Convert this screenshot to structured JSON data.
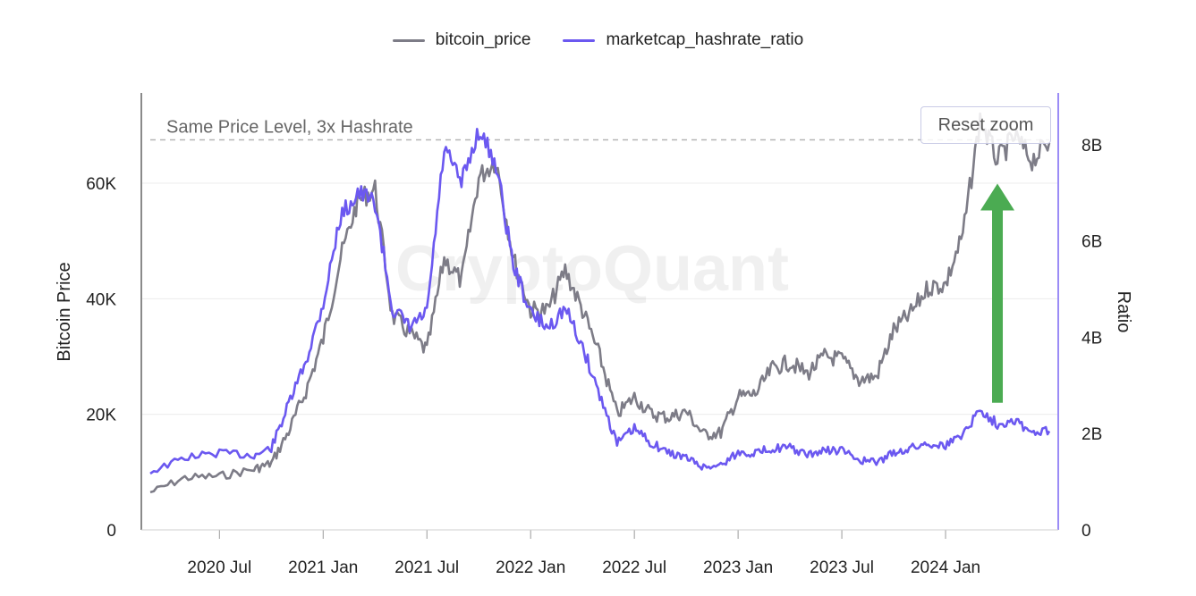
{
  "legend": {
    "price_label": "bitcoin_price",
    "ratio_label": "marketcap_hashrate_ratio"
  },
  "reset_zoom_label": "Reset zoom",
  "watermark": "CryptoQuant",
  "colors": {
    "price": "#7d7c87",
    "ratio": "#6b58f0",
    "arrow": "#4bab52",
    "ref_line": "#b5b5b5",
    "right_axis": "#9b8cf6"
  },
  "chart_data": {
    "type": "line",
    "x_range": [
      "2020-03",
      "2024-07"
    ],
    "y_left": {
      "label": "Bitcoin Price",
      "range": [
        0,
        75000
      ],
      "ticks": [
        0,
        20000,
        40000,
        60000
      ],
      "tick_labels": [
        "0",
        "20K",
        "40K",
        "60K"
      ]
    },
    "y_right": {
      "label": "Ratio",
      "range": [
        0,
        9000000000
      ],
      "ticks": [
        0,
        2000000000,
        4000000000,
        6000000000,
        8000000000
      ],
      "tick_labels": [
        "0",
        "2B",
        "4B",
        "6B",
        "8B"
      ]
    },
    "x_ticks": [
      "2020-07",
      "2021-01",
      "2021-07",
      "2022-01",
      "2022-07",
      "2023-01",
      "2023-07",
      "2024-01"
    ],
    "x_tick_labels": [
      "2020 Jul",
      "2021 Jan",
      "2021 Jul",
      "2022 Jan",
      "2022 Jul",
      "2023 Jan",
      "2023 Jul",
      "2024 Jan"
    ],
    "grid": true,
    "legend_position": "top-center",
    "series": [
      {
        "name": "bitcoin_price",
        "axis": "left",
        "points": [
          [
            "2020-03",
            6500
          ],
          [
            "2020-05",
            9000
          ],
          [
            "2020-07",
            9300
          ],
          [
            "2020-09",
            10500
          ],
          [
            "2020-10",
            11500
          ],
          [
            "2020-11",
            17000
          ],
          [
            "2020-12",
            24000
          ],
          [
            "2021-01",
            33000
          ],
          [
            "2021-02",
            47000
          ],
          [
            "2021-03",
            57000
          ],
          [
            "2021-04",
            59000
          ],
          [
            "2021-05",
            37000
          ],
          [
            "2021-06",
            34000
          ],
          [
            "2021-07",
            31000
          ],
          [
            "2021-08",
            47000
          ],
          [
            "2021-09",
            43000
          ],
          [
            "2021-10",
            61000
          ],
          [
            "2021-11",
            64000
          ],
          [
            "2021-12",
            47000
          ],
          [
            "2022-01",
            38000
          ],
          [
            "2022-02",
            38000
          ],
          [
            "2022-03",
            45000
          ],
          [
            "2022-04",
            38000
          ],
          [
            "2022-05",
            30000
          ],
          [
            "2022-06",
            20000
          ],
          [
            "2022-07",
            23000
          ],
          [
            "2022-08",
            20000
          ],
          [
            "2022-09",
            19500
          ],
          [
            "2022-10",
            20500
          ],
          [
            "2022-11",
            16500
          ],
          [
            "2022-12",
            16800
          ],
          [
            "2023-01",
            23000
          ],
          [
            "2023-02",
            23500
          ],
          [
            "2023-03",
            28000
          ],
          [
            "2023-04",
            29000
          ],
          [
            "2023-05",
            27000
          ],
          [
            "2023-06",
            30000
          ],
          [
            "2023-07",
            29500
          ],
          [
            "2023-08",
            26000
          ],
          [
            "2023-09",
            26500
          ],
          [
            "2023-10",
            34500
          ],
          [
            "2023-11",
            37500
          ],
          [
            "2023-12",
            42000
          ],
          [
            "2024-01",
            42500
          ],
          [
            "2024-02",
            51000
          ],
          [
            "2024-03",
            71000
          ],
          [
            "2024-04",
            64000
          ],
          [
            "2024-05",
            68000
          ],
          [
            "2024-06",
            64000
          ],
          [
            "2024-07",
            67000
          ]
        ]
      },
      {
        "name": "marketcap_hashrate_ratio",
        "axis": "right",
        "points": [
          [
            "2020-03",
            1200000000
          ],
          [
            "2020-05",
            1500000000
          ],
          [
            "2020-07",
            1600000000
          ],
          [
            "2020-09",
            1550000000
          ],
          [
            "2020-10",
            1700000000
          ],
          [
            "2020-11",
            2600000000
          ],
          [
            "2020-12",
            3500000000
          ],
          [
            "2021-01",
            4700000000
          ],
          [
            "2021-02",
            6500000000
          ],
          [
            "2021-03",
            7000000000
          ],
          [
            "2021-04",
            6800000000
          ],
          [
            "2021-05",
            4600000000
          ],
          [
            "2021-06",
            4200000000
          ],
          [
            "2021-07",
            4500000000
          ],
          [
            "2021-08",
            7900000000
          ],
          [
            "2021-09",
            7200000000
          ],
          [
            "2021-10",
            8300000000
          ],
          [
            "2021-11",
            7600000000
          ],
          [
            "2021-12",
            5500000000
          ],
          [
            "2022-01",
            4500000000
          ],
          [
            "2022-02",
            4200000000
          ],
          [
            "2022-03",
            4600000000
          ],
          [
            "2022-04",
            3800000000
          ],
          [
            "2022-05",
            2800000000
          ],
          [
            "2022-06",
            1800000000
          ],
          [
            "2022-07",
            2100000000
          ],
          [
            "2022-08",
            1800000000
          ],
          [
            "2022-09",
            1600000000
          ],
          [
            "2022-10",
            1500000000
          ],
          [
            "2022-11",
            1300000000
          ],
          [
            "2022-12",
            1350000000
          ],
          [
            "2023-01",
            1600000000
          ],
          [
            "2023-02",
            1600000000
          ],
          [
            "2023-03",
            1700000000
          ],
          [
            "2023-04",
            1700000000
          ],
          [
            "2023-05",
            1550000000
          ],
          [
            "2023-06",
            1650000000
          ],
          [
            "2023-07",
            1650000000
          ],
          [
            "2023-08",
            1450000000
          ],
          [
            "2023-09",
            1400000000
          ],
          [
            "2023-10",
            1600000000
          ],
          [
            "2023-11",
            1700000000
          ],
          [
            "2023-12",
            1800000000
          ],
          [
            "2024-01",
            1750000000
          ],
          [
            "2024-02",
            2000000000
          ],
          [
            "2024-03",
            2500000000
          ],
          [
            "2024-04",
            2200000000
          ],
          [
            "2024-05",
            2300000000
          ],
          [
            "2024-06",
            2000000000
          ],
          [
            "2024-07",
            2050000000
          ]
        ]
      }
    ],
    "annotations": [
      {
        "text": "Same Price Level, 3x Hashrate",
        "type": "horizontal-dashed-line",
        "axis": "left",
        "y": 67500
      },
      {
        "type": "arrow-up",
        "color": "#4bab52",
        "from_price": 22000,
        "to_price": 59000,
        "at": "2024-04"
      }
    ]
  }
}
